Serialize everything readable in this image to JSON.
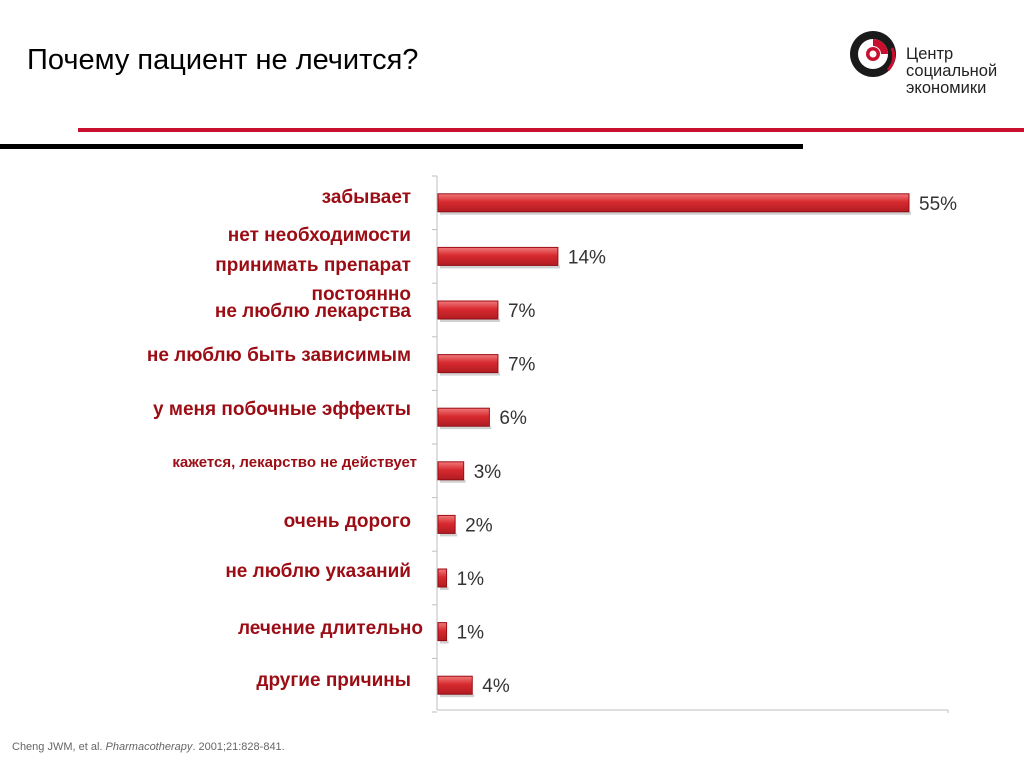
{
  "slide": {
    "title": "Почему пациент не лечится?"
  },
  "logo": {
    "line1": "Центр",
    "line2": "социальной",
    "line3": "экономики"
  },
  "colors": {
    "bar": "#d72a2f",
    "bar_border": "#9b0d14",
    "label": "#9b0d14",
    "rule_red": "#c8102e"
  },
  "chart_data": {
    "type": "bar",
    "orientation": "horizontal",
    "categories": [
      "забывает",
      "нет необходимости принимать препарат постоянно",
      "не люблю лекарства",
      "не люблю быть зависимым",
      "у меня побочные эффекты",
      "кажется, лекарство не действует",
      "очень дорого",
      "не люблю указаний",
      "лечение длительно",
      "другие причины"
    ],
    "values": [
      55,
      14,
      7,
      7,
      6,
      3,
      2,
      1,
      1,
      4
    ],
    "value_labels": [
      "55%",
      "14%",
      "7%",
      "7%",
      "6%",
      "3%",
      "2%",
      "1%",
      "1%",
      "4%"
    ],
    "unit": "%",
    "xlim": [
      0,
      60
    ],
    "grid": false
  },
  "citation": {
    "authors": "Cheng JWM, et al. ",
    "journal": "Pharmacotherapy",
    "details": ". 2001;21:828-841."
  }
}
